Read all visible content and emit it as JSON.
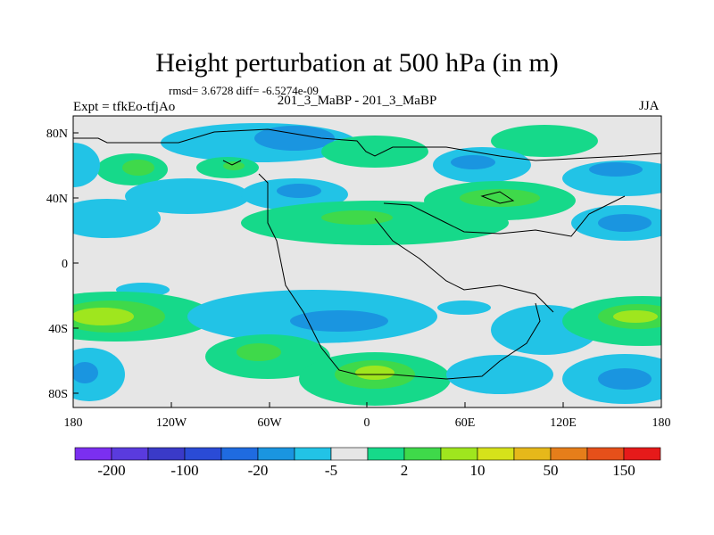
{
  "title": "Height perturbation at 500 hPa (in m)",
  "stats": "rmsd= 3.6728 diff= -6.5274e-09",
  "left_label": "Expt = tfkEo-tfjAo",
  "center_label": "201_3_MaBP - 201_3_MaBP",
  "right_label": "JJA",
  "axes": {
    "lat_ticks": [
      "80N",
      "40N",
      "0",
      "40S",
      "80S"
    ],
    "lon_ticks": [
      "180",
      "120W",
      "60W",
      "0",
      "60E",
      "120E",
      "180"
    ]
  },
  "colorbar": {
    "colors": [
      "#7b2ff0",
      "#5a3bde",
      "#3a3ac8",
      "#2a4bd6",
      "#1f6be0",
      "#1a95e0",
      "#22c3e6",
      "#e6e6e6",
      "#16d98a",
      "#3fd94a",
      "#9fe61e",
      "#d6e21a",
      "#e6b81a",
      "#e67e1a",
      "#e6501a",
      "#e61a1a"
    ],
    "labels": [
      "-200",
      "-100",
      "-20",
      "-5",
      "2",
      "10",
      "50",
      "150"
    ]
  }
}
